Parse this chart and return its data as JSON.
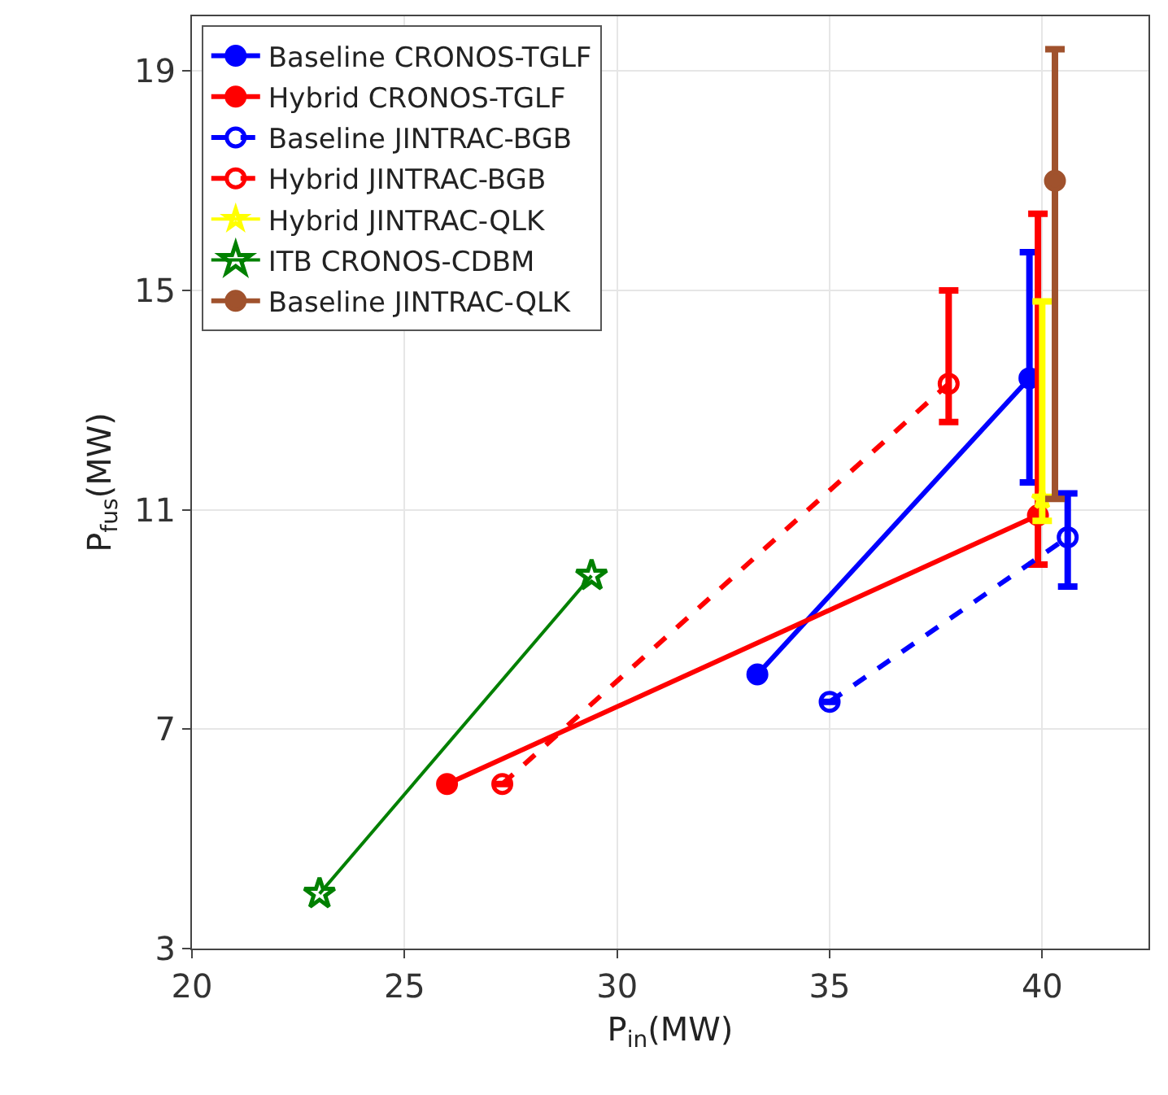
{
  "chart_data": {
    "type": "line",
    "xlabel": "P$_{in}$(MW)",
    "ylabel": "P$_{fus}$(MW)",
    "xlim": [
      20,
      42.5
    ],
    "ylim": [
      3,
      20
    ],
    "xticks": [
      20,
      25,
      30,
      35,
      40
    ],
    "yticks": [
      3,
      7,
      11,
      15,
      19
    ],
    "grid": true,
    "legend": "top left",
    "series": [
      {
        "name": "Baseline CRONOS-TGLF",
        "color": "#0000ff",
        "x": [
          33.3,
          39.7
        ],
        "values": [
          8.0,
          13.4
        ],
        "errors": [
          null,
          [
            11.5,
            15.7
          ]
        ],
        "line_style": "solid",
        "marker": "circle"
      },
      {
        "name": "Hybrid CRONOS-TGLF",
        "color": "#ff0000",
        "x": [
          26.0,
          39.9
        ],
        "values": [
          6.0,
          10.9
        ],
        "errors": [
          null,
          [
            10.0,
            16.4
          ]
        ],
        "line_style": "solid",
        "marker": "circle"
      },
      {
        "name": "Baseline JINTRAC-BGB",
        "color": "#0000ff",
        "x": [
          35.0,
          40.6
        ],
        "values": [
          7.5,
          10.5
        ],
        "errors": [
          null,
          [
            9.6,
            11.3
          ]
        ],
        "line_style": "dashed",
        "marker": "circle"
      },
      {
        "name": "Hybrid JINTRAC-BGB",
        "color": "#ff0000",
        "x": [
          27.3,
          37.8
        ],
        "values": [
          6.0,
          13.3
        ],
        "errors": [
          null,
          [
            12.6,
            15.0
          ]
        ],
        "line_style": "dashed",
        "marker": "circle"
      },
      {
        "name": "Hybrid JINTRAC-QLK",
        "color": "#ffff00",
        "x": [
          40.0
        ],
        "values": [
          11.2
        ],
        "errors": [
          [
            10.8,
            14.8
          ]
        ],
        "line_style": "solid",
        "marker": "star"
      },
      {
        "name": "ITB CRONOS-CDBM",
        "color": "#008000",
        "x": [
          23.0,
          29.4
        ],
        "values": [
          4.0,
          9.8
        ],
        "line_style": "solid",
        "marker": "star"
      },
      {
        "name": "Baseline JINTRAC-QLK",
        "color": "#a0522d",
        "x": [
          40.3
        ],
        "values": [
          17.0
        ],
        "errors": [
          [
            11.2,
            19.4
          ]
        ],
        "line_style": "solid",
        "marker": "circle"
      }
    ]
  }
}
